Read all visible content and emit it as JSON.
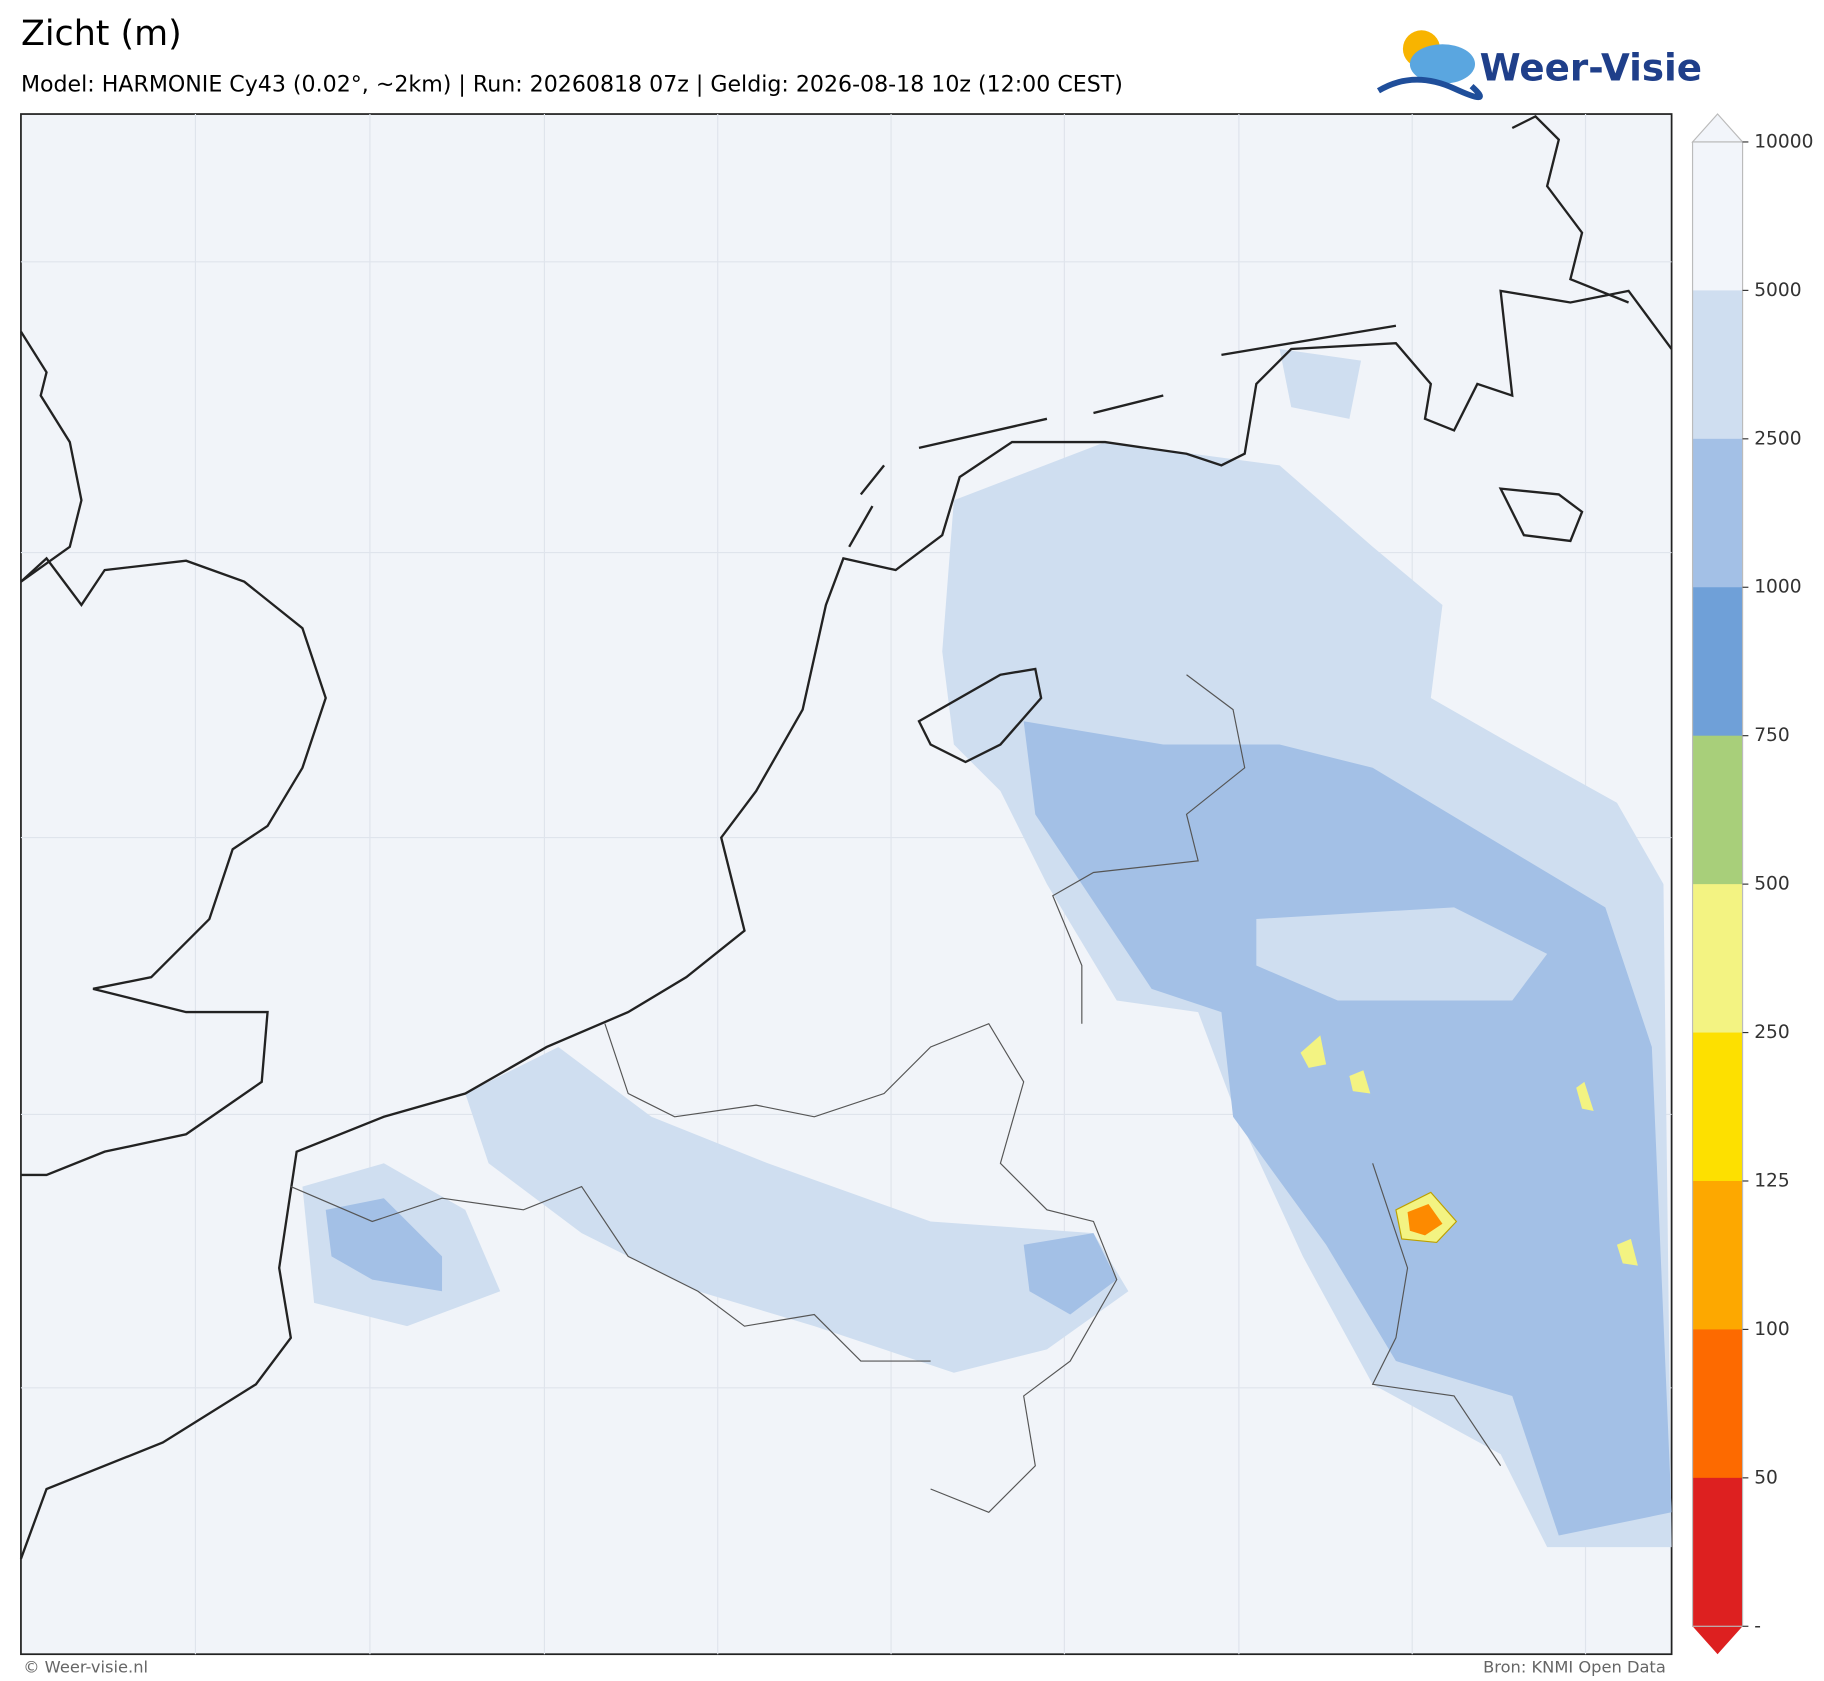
{
  "header": {
    "title": "Zicht (m)",
    "subtitle": "Model: HARMONIE Cy43 (0.02°, ~2km)  |  Run: 20260818 07z  |  Geldig: 2026-08-18 10z (12:00 CEST)"
  },
  "logo": {
    "text": "Weer-Visie"
  },
  "colorbar": {
    "ticks": [
      10000,
      5000,
      2500,
      1000,
      750,
      500,
      250,
      125,
      100,
      50
    ],
    "bottom_label": "-",
    "over_color": "#f2f5fa",
    "colors": [
      "#f2f5fa",
      "#cfdef0",
      "#a3c0e6",
      "#6fa0d8",
      "#a8cf7a",
      "#f3f382",
      "#fde000",
      "#fda800",
      "#fd6a00",
      "#dd2020"
    ],
    "under_color": "#dd2020"
  },
  "footer": {
    "left": "© Weer-visie.nl",
    "right": "Bron: KNMI Open Data"
  }
}
